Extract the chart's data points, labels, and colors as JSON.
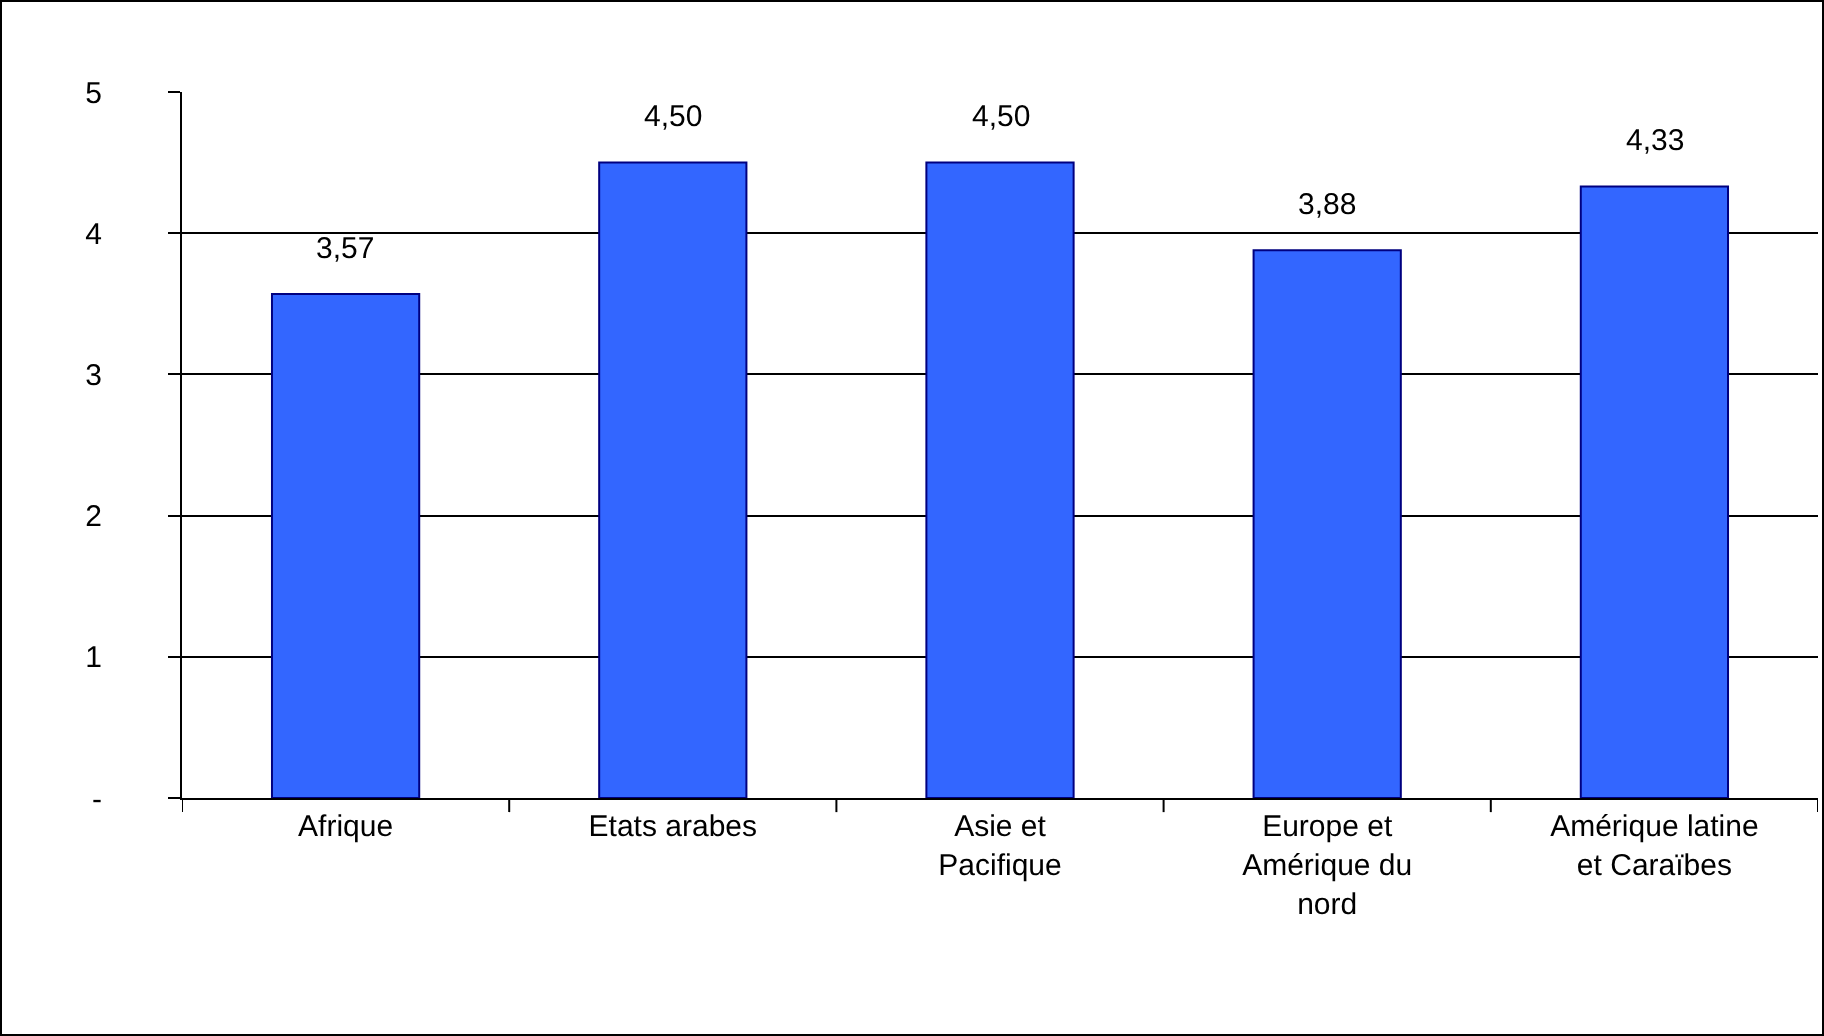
{
  "chart_data": {
    "type": "bar",
    "categories": [
      "Afrique",
      "Etats arabes",
      "Asie et Pacifique",
      "Europe et Amérique du nord",
      "Amérique latine et Caraïbes"
    ],
    "values": [
      3.57,
      4.5,
      4.5,
      3.88,
      4.33
    ],
    "value_labels": [
      "3,57",
      "4,50",
      "4,50",
      "3,88",
      "4,33"
    ],
    "color": "#3366ff",
    "ylim": [
      0,
      5
    ],
    "yticks": [
      {
        "value": 0,
        "label": "-"
      },
      1,
      2,
      3,
      4,
      5
    ],
    "grid": "y"
  }
}
